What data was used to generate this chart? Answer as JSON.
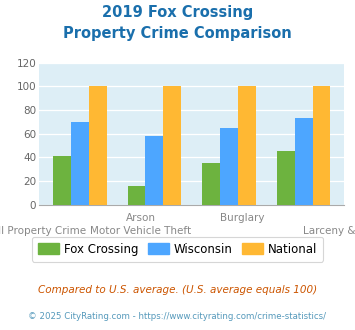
{
  "title_line1": "2019 Fox Crossing",
  "title_line2": "Property Crime Comparison",
  "cat_labels_top": [
    "",
    "Arson",
    "Burglary",
    ""
  ],
  "cat_labels_bot": [
    "All Property Crime",
    "Motor Vehicle Theft",
    "",
    "Larceny & Theft"
  ],
  "fox_crossing": [
    41,
    16,
    35,
    45
  ],
  "wisconsin": [
    70,
    58,
    65,
    73
  ],
  "national": [
    100,
    100,
    100,
    100
  ],
  "fox_color": "#6db33f",
  "wisconsin_color": "#4da6ff",
  "national_color": "#ffb833",
  "bg_color": "#ddeef6",
  "ylim": [
    0,
    120
  ],
  "yticks": [
    0,
    20,
    40,
    60,
    80,
    100,
    120
  ],
  "legend_labels": [
    "Fox Crossing",
    "Wisconsin",
    "National"
  ],
  "footnote1": "Compared to U.S. average. (U.S. average equals 100)",
  "footnote2": "© 2025 CityRating.com - https://www.cityrating.com/crime-statistics/",
  "title_color": "#1a6fac",
  "footnote1_color": "#cc5500",
  "footnote2_color": "#5599bb"
}
